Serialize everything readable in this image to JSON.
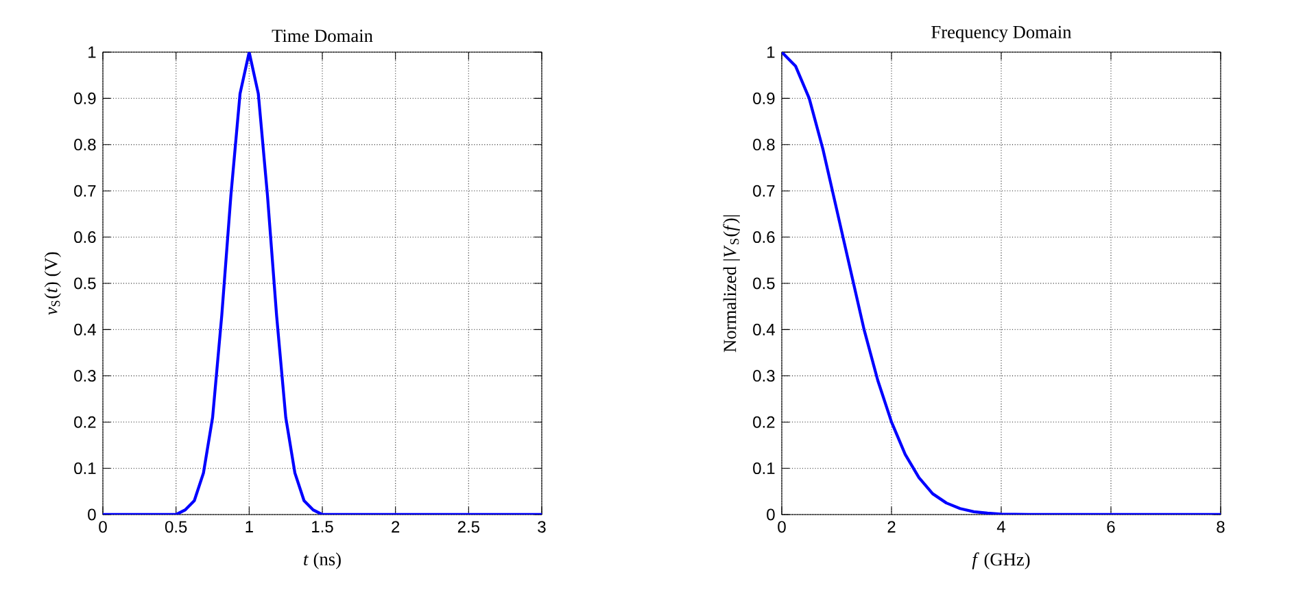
{
  "chart_data": [
    {
      "type": "line",
      "title": "Time Domain",
      "xlabel": "*t* (ns)",
      "ylabel": "*v*$_{S}$(*t*) (V)",
      "x": [
        0,
        0.5,
        0.5625,
        0.625,
        0.6875,
        0.75,
        0.8125,
        0.875,
        0.9375,
        1,
        1.0625,
        1.125,
        1.1875,
        1.25,
        1.3125,
        1.375,
        1.4375,
        1.5,
        3
      ],
      "series": [
        {
          "color": "#0000ff",
          "values": [
            0,
            0,
            0.01,
            0.03,
            0.09,
            0.21,
            0.43,
            0.69,
            0.91,
            1,
            0.91,
            0.69,
            0.43,
            0.21,
            0.09,
            0.03,
            0.01,
            0,
            0
          ]
        }
      ],
      "xlim": [
        0,
        3
      ],
      "ylim": [
        0,
        1
      ],
      "xticks": [
        0,
        0.5,
        1,
        1.5,
        2,
        2.5,
        3
      ],
      "yticks": [
        0,
        0.1,
        0.2,
        0.3,
        0.4,
        0.5,
        0.6,
        0.7,
        0.8,
        0.9,
        1
      ],
      "grid": true,
      "line_style": "solid"
    },
    {
      "type": "line",
      "title": "Frequency Domain",
      "xlabel": "*f* (GHz)",
      "ylabel": "Normalized |*V*$_{S}$(*f*)|",
      "x": [
        0,
        0.25,
        0.5,
        0.75,
        1,
        1.25,
        1.5,
        1.75,
        2,
        2.25,
        2.5,
        2.75,
        3,
        3.25,
        3.5,
        3.75,
        4,
        4.5,
        8
      ],
      "series": [
        {
          "color": "#0000ff",
          "values": [
            1,
            0.97,
            0.9,
            0.79,
            0.66,
            0.53,
            0.4,
            0.29,
            0.2,
            0.13,
            0.08,
            0.045,
            0.025,
            0.013,
            0.006,
            0.003,
            0.001,
            0,
            0
          ]
        }
      ],
      "xlim": [
        0,
        8
      ],
      "ylim": [
        0,
        1
      ],
      "xticks": [
        0,
        2,
        4,
        6,
        8
      ],
      "yticks": [
        0,
        0.1,
        0.2,
        0.3,
        0.4,
        0.5,
        0.6,
        0.7,
        0.8,
        0.9,
        1
      ],
      "grid": true,
      "line_style": "solid"
    }
  ]
}
